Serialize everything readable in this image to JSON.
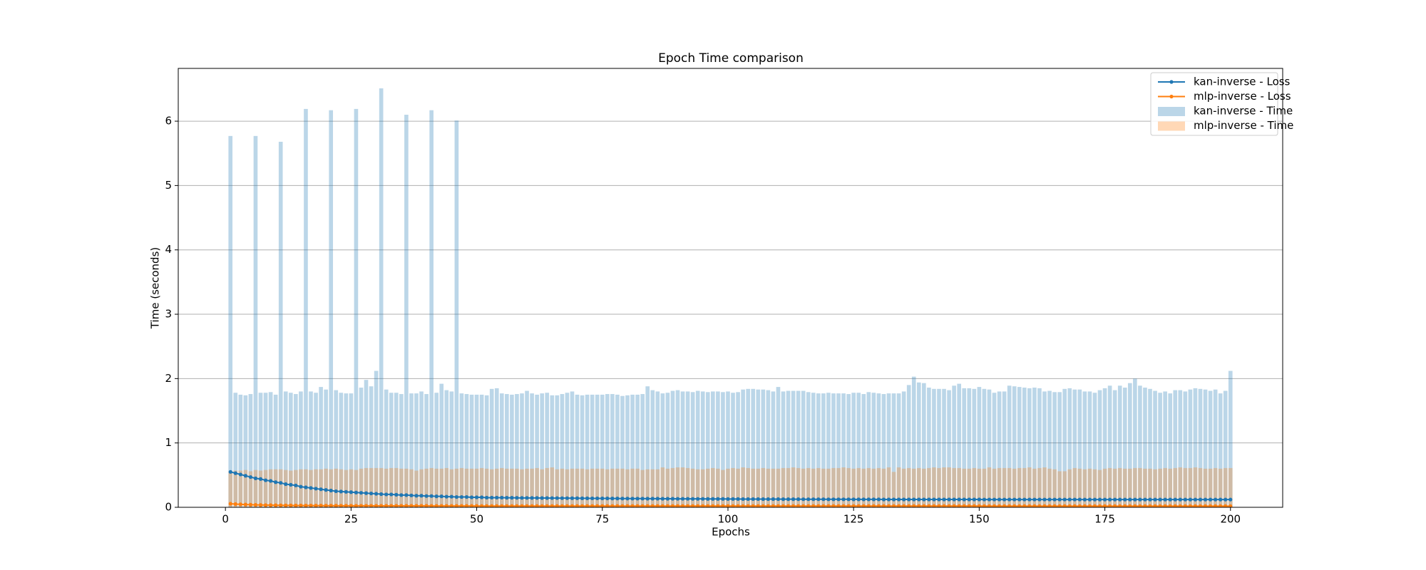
{
  "chart_data": {
    "type": "bar",
    "title": "Epoch Time comparison",
    "xlabel": "Epochs",
    "ylabel": "Time (seconds)",
    "xlim": [
      -9.39,
      210.39
    ],
    "ylim": [
      0,
      6.82
    ],
    "xticks": [
      0,
      25,
      50,
      75,
      100,
      125,
      150,
      175,
      200
    ],
    "yticks": [
      0,
      1,
      2,
      3,
      4,
      5,
      6
    ],
    "grid": "y",
    "legend": "upper right",
    "x": [
      1,
      2,
      3,
      4,
      5,
      6,
      7,
      8,
      9,
      10,
      11,
      12,
      13,
      14,
      15,
      16,
      17,
      18,
      19,
      20,
      21,
      22,
      23,
      24,
      25,
      26,
      27,
      28,
      29,
      30,
      31,
      32,
      33,
      34,
      35,
      36,
      37,
      38,
      39,
      40,
      41,
      42,
      43,
      44,
      45,
      46,
      47,
      48,
      49,
      50,
      51,
      52,
      53,
      54,
      55,
      56,
      57,
      58,
      59,
      60,
      61,
      62,
      63,
      64,
      65,
      66,
      67,
      68,
      69,
      70,
      71,
      72,
      73,
      74,
      75,
      76,
      77,
      78,
      79,
      80,
      81,
      82,
      83,
      84,
      85,
      86,
      87,
      88,
      89,
      90,
      91,
      92,
      93,
      94,
      95,
      96,
      97,
      98,
      99,
      100,
      101,
      102,
      103,
      104,
      105,
      106,
      107,
      108,
      109,
      110,
      111,
      112,
      113,
      114,
      115,
      116,
      117,
      118,
      119,
      120,
      121,
      122,
      123,
      124,
      125,
      126,
      127,
      128,
      129,
      130,
      131,
      132,
      133,
      134,
      135,
      136,
      137,
      138,
      139,
      140,
      141,
      142,
      143,
      144,
      145,
      146,
      147,
      148,
      149,
      150,
      151,
      152,
      153,
      154,
      155,
      156,
      157,
      158,
      159,
      160,
      161,
      162,
      163,
      164,
      165,
      166,
      167,
      168,
      169,
      170,
      171,
      172,
      173,
      174,
      175,
      176,
      177,
      178,
      179,
      180,
      181,
      182,
      183,
      184,
      185,
      186,
      187,
      188,
      189,
      190,
      191,
      192,
      193,
      194,
      195,
      196,
      197,
      198,
      199,
      200
    ],
    "series": [
      {
        "name": "kan-inverse - Loss",
        "type": "line",
        "color": "#1f77b4",
        "values": [
          0.55,
          0.53,
          0.51,
          0.49,
          0.47,
          0.45,
          0.44,
          0.42,
          0.41,
          0.39,
          0.38,
          0.36,
          0.35,
          0.34,
          0.32,
          0.31,
          0.3,
          0.29,
          0.28,
          0.27,
          0.26,
          0.25,
          0.245,
          0.24,
          0.235,
          0.23,
          0.225,
          0.22,
          0.215,
          0.21,
          0.205,
          0.2,
          0.2,
          0.195,
          0.19,
          0.19,
          0.185,
          0.18,
          0.18,
          0.175,
          0.175,
          0.17,
          0.17,
          0.165,
          0.165,
          0.16,
          0.16,
          0.16,
          0.155,
          0.155,
          0.155,
          0.15,
          0.15,
          0.15,
          0.15,
          0.148,
          0.148,
          0.147,
          0.146,
          0.146,
          0.145,
          0.145,
          0.144,
          0.144,
          0.143,
          0.143,
          0.142,
          0.142,
          0.141,
          0.141,
          0.14,
          0.14,
          0.139,
          0.139,
          0.138,
          0.138,
          0.137,
          0.137,
          0.136,
          0.136,
          0.135,
          0.135,
          0.135,
          0.134,
          0.134,
          0.134,
          0.133,
          0.133,
          0.133,
          0.132,
          0.132,
          0.132,
          0.131,
          0.131,
          0.131,
          0.13,
          0.13,
          0.13,
          0.13,
          0.129,
          0.129,
          0.129,
          0.128,
          0.128,
          0.128,
          0.128,
          0.127,
          0.127,
          0.127,
          0.127,
          0.126,
          0.126,
          0.126,
          0.126,
          0.125,
          0.125,
          0.125,
          0.125,
          0.125,
          0.124,
          0.124,
          0.124,
          0.124,
          0.124,
          0.123,
          0.123,
          0.123,
          0.123,
          0.123,
          0.123,
          0.122,
          0.122,
          0.122,
          0.122,
          0.122,
          0.122,
          0.122,
          0.122,
          0.122,
          0.122,
          0.122,
          0.122,
          0.122,
          0.122,
          0.122,
          0.122,
          0.122,
          0.122,
          0.122,
          0.122,
          0.121,
          0.121,
          0.121,
          0.121,
          0.121,
          0.121,
          0.121,
          0.121,
          0.121,
          0.121,
          0.121,
          0.121,
          0.121,
          0.121,
          0.121,
          0.121,
          0.121,
          0.121,
          0.121,
          0.121,
          0.12,
          0.12,
          0.12,
          0.12,
          0.12,
          0.12,
          0.12,
          0.12,
          0.12,
          0.12,
          0.12,
          0.12,
          0.12,
          0.12,
          0.12,
          0.12,
          0.12,
          0.12,
          0.12,
          0.12,
          0.12,
          0.12,
          0.12,
          0.12,
          0.12,
          0.12,
          0.12,
          0.12,
          0.12,
          0.12
        ]
      },
      {
        "name": "mlp-inverse - Loss",
        "type": "line",
        "color": "#ff7f0e",
        "values": [
          0.055,
          0.05,
          0.046,
          0.043,
          0.04,
          0.038,
          0.036,
          0.034,
          0.033,
          0.032,
          0.031,
          0.03,
          0.029,
          0.028,
          0.028,
          0.027,
          0.027,
          0.026,
          0.026,
          0.025,
          0.025,
          0.025,
          0.024,
          0.024,
          0.024,
          0.023,
          0.023,
          0.023,
          0.023,
          0.022,
          0.022,
          0.022,
          0.022,
          0.022,
          0.022,
          0.022,
          0.022,
          0.022,
          0.022,
          0.022,
          0.021,
          0.021,
          0.021,
          0.021,
          0.021,
          0.021,
          0.021,
          0.021,
          0.021,
          0.021,
          0.02,
          0.02,
          0.02,
          0.02,
          0.02,
          0.02,
          0.02,
          0.02,
          0.02,
          0.02,
          0.02,
          0.02,
          0.02,
          0.02,
          0.02,
          0.02,
          0.02,
          0.02,
          0.02,
          0.02,
          0.02,
          0.02,
          0.02,
          0.02,
          0.02,
          0.02,
          0.02,
          0.02,
          0.02,
          0.02,
          0.02,
          0.02,
          0.02,
          0.02,
          0.02,
          0.02,
          0.02,
          0.02,
          0.02,
          0.02,
          0.02,
          0.02,
          0.02,
          0.02,
          0.02,
          0.02,
          0.02,
          0.02,
          0.02,
          0.02,
          0.019,
          0.019,
          0.019,
          0.019,
          0.019,
          0.019,
          0.019,
          0.019,
          0.019,
          0.019,
          0.019,
          0.019,
          0.019,
          0.019,
          0.019,
          0.019,
          0.019,
          0.019,
          0.019,
          0.019,
          0.019,
          0.019,
          0.019,
          0.019,
          0.019,
          0.019,
          0.019,
          0.019,
          0.019,
          0.019,
          0.019,
          0.019,
          0.019,
          0.019,
          0.019,
          0.019,
          0.019,
          0.019,
          0.019,
          0.019,
          0.019,
          0.019,
          0.019,
          0.019,
          0.019,
          0.019,
          0.019,
          0.019,
          0.019,
          0.019,
          0.018,
          0.018,
          0.018,
          0.018,
          0.018,
          0.018,
          0.018,
          0.018,
          0.018,
          0.018,
          0.018,
          0.018,
          0.018,
          0.018,
          0.018,
          0.018,
          0.018,
          0.018,
          0.018,
          0.018,
          0.018,
          0.018,
          0.018,
          0.018,
          0.018,
          0.018,
          0.018,
          0.018,
          0.018,
          0.018,
          0.018,
          0.018,
          0.018,
          0.018,
          0.018,
          0.018,
          0.018,
          0.018,
          0.018,
          0.018,
          0.018,
          0.018,
          0.018,
          0.018,
          0.018,
          0.018,
          0.018,
          0.018,
          0.018,
          0.018
        ]
      },
      {
        "name": "kan-inverse - Time",
        "type": "bar",
        "color": "#1f77b4",
        "values": [
          5.77,
          1.78,
          1.75,
          1.74,
          1.76,
          5.77,
          1.78,
          1.78,
          1.79,
          1.75,
          5.68,
          1.8,
          1.78,
          1.76,
          1.8,
          6.19,
          1.8,
          1.78,
          1.87,
          1.83,
          6.17,
          1.82,
          1.78,
          1.77,
          1.77,
          6.19,
          1.86,
          1.98,
          1.88,
          2.12,
          6.51,
          1.83,
          1.78,
          1.78,
          1.76,
          6.1,
          1.77,
          1.77,
          1.8,
          1.76,
          6.17,
          1.78,
          1.92,
          1.82,
          1.8,
          6.01,
          1.77,
          1.76,
          1.75,
          1.75,
          1.75,
          1.74,
          1.84,
          1.85,
          1.77,
          1.76,
          1.75,
          1.76,
          1.77,
          1.81,
          1.77,
          1.75,
          1.77,
          1.78,
          1.74,
          1.74,
          1.76,
          1.78,
          1.8,
          1.75,
          1.74,
          1.75,
          1.75,
          1.75,
          1.75,
          1.76,
          1.76,
          1.75,
          1.73,
          1.74,
          1.75,
          1.75,
          1.76,
          1.88,
          1.82,
          1.8,
          1.77,
          1.78,
          1.81,
          1.82,
          1.8,
          1.8,
          1.79,
          1.81,
          1.8,
          1.79,
          1.8,
          1.8,
          1.79,
          1.8,
          1.78,
          1.79,
          1.83,
          1.84,
          1.84,
          1.83,
          1.83,
          1.82,
          1.8,
          1.87,
          1.8,
          1.81,
          1.81,
          1.81,
          1.81,
          1.79,
          1.78,
          1.77,
          1.77,
          1.78,
          1.77,
          1.77,
          1.77,
          1.76,
          1.78,
          1.78,
          1.76,
          1.79,
          1.78,
          1.77,
          1.76,
          1.77,
          1.77,
          1.77,
          1.8,
          1.9,
          2.03,
          1.94,
          1.93,
          1.86,
          1.84,
          1.84,
          1.84,
          1.82,
          1.89,
          1.92,
          1.85,
          1.85,
          1.84,
          1.87,
          1.84,
          1.83,
          1.78,
          1.8,
          1.8,
          1.89,
          1.88,
          1.87,
          1.86,
          1.85,
          1.86,
          1.85,
          1.8,
          1.81,
          1.79,
          1.79,
          1.84,
          1.85,
          1.83,
          1.83,
          1.8,
          1.8,
          1.78,
          1.82,
          1.85,
          1.89,
          1.82,
          1.89,
          1.86,
          1.93,
          2.0,
          1.89,
          1.86,
          1.84,
          1.81,
          1.78,
          1.8,
          1.77,
          1.82,
          1.82,
          1.8,
          1.83,
          1.85,
          1.84,
          1.83,
          1.81,
          1.83,
          1.77,
          1.81,
          2.12
        ]
      },
      {
        "name": "mlp-inverse - Time",
        "type": "bar",
        "color": "#ff7f0e",
        "values": [
          0.56,
          0.57,
          0.57,
          0.58,
          0.56,
          0.58,
          0.57,
          0.58,
          0.59,
          0.59,
          0.59,
          0.58,
          0.57,
          0.58,
          0.59,
          0.59,
          0.58,
          0.59,
          0.59,
          0.6,
          0.59,
          0.6,
          0.59,
          0.58,
          0.59,
          0.58,
          0.6,
          0.61,
          0.61,
          0.61,
          0.61,
          0.6,
          0.61,
          0.61,
          0.6,
          0.6,
          0.59,
          0.57,
          0.59,
          0.6,
          0.61,
          0.6,
          0.6,
          0.61,
          0.59,
          0.6,
          0.61,
          0.6,
          0.6,
          0.6,
          0.61,
          0.6,
          0.59,
          0.6,
          0.61,
          0.6,
          0.6,
          0.6,
          0.59,
          0.6,
          0.6,
          0.61,
          0.59,
          0.61,
          0.62,
          0.59,
          0.6,
          0.59,
          0.6,
          0.6,
          0.6,
          0.59,
          0.6,
          0.6,
          0.6,
          0.59,
          0.6,
          0.6,
          0.6,
          0.59,
          0.6,
          0.6,
          0.58,
          0.59,
          0.59,
          0.59,
          0.62,
          0.6,
          0.61,
          0.62,
          0.62,
          0.61,
          0.6,
          0.59,
          0.59,
          0.6,
          0.61,
          0.6,
          0.58,
          0.6,
          0.61,
          0.6,
          0.62,
          0.61,
          0.6,
          0.6,
          0.61,
          0.6,
          0.6,
          0.6,
          0.61,
          0.61,
          0.62,
          0.61,
          0.6,
          0.61,
          0.6,
          0.61,
          0.6,
          0.6,
          0.61,
          0.61,
          0.62,
          0.61,
          0.6,
          0.61,
          0.6,
          0.61,
          0.6,
          0.61,
          0.6,
          0.62,
          0.55,
          0.62,
          0.6,
          0.61,
          0.6,
          0.61,
          0.6,
          0.61,
          0.62,
          0.61,
          0.62,
          0.62,
          0.61,
          0.61,
          0.6,
          0.6,
          0.61,
          0.6,
          0.6,
          0.62,
          0.6,
          0.61,
          0.61,
          0.61,
          0.6,
          0.61,
          0.61,
          0.62,
          0.6,
          0.61,
          0.62,
          0.6,
          0.59,
          0.56,
          0.56,
          0.59,
          0.61,
          0.6,
          0.59,
          0.6,
          0.59,
          0.58,
          0.6,
          0.61,
          0.6,
          0.61,
          0.6,
          0.6,
          0.61,
          0.61,
          0.6,
          0.6,
          0.59,
          0.6,
          0.61,
          0.6,
          0.61,
          0.62,
          0.61,
          0.61,
          0.62,
          0.61,
          0.6,
          0.6,
          0.61,
          0.6,
          0.61,
          0.61
        ]
      }
    ]
  }
}
